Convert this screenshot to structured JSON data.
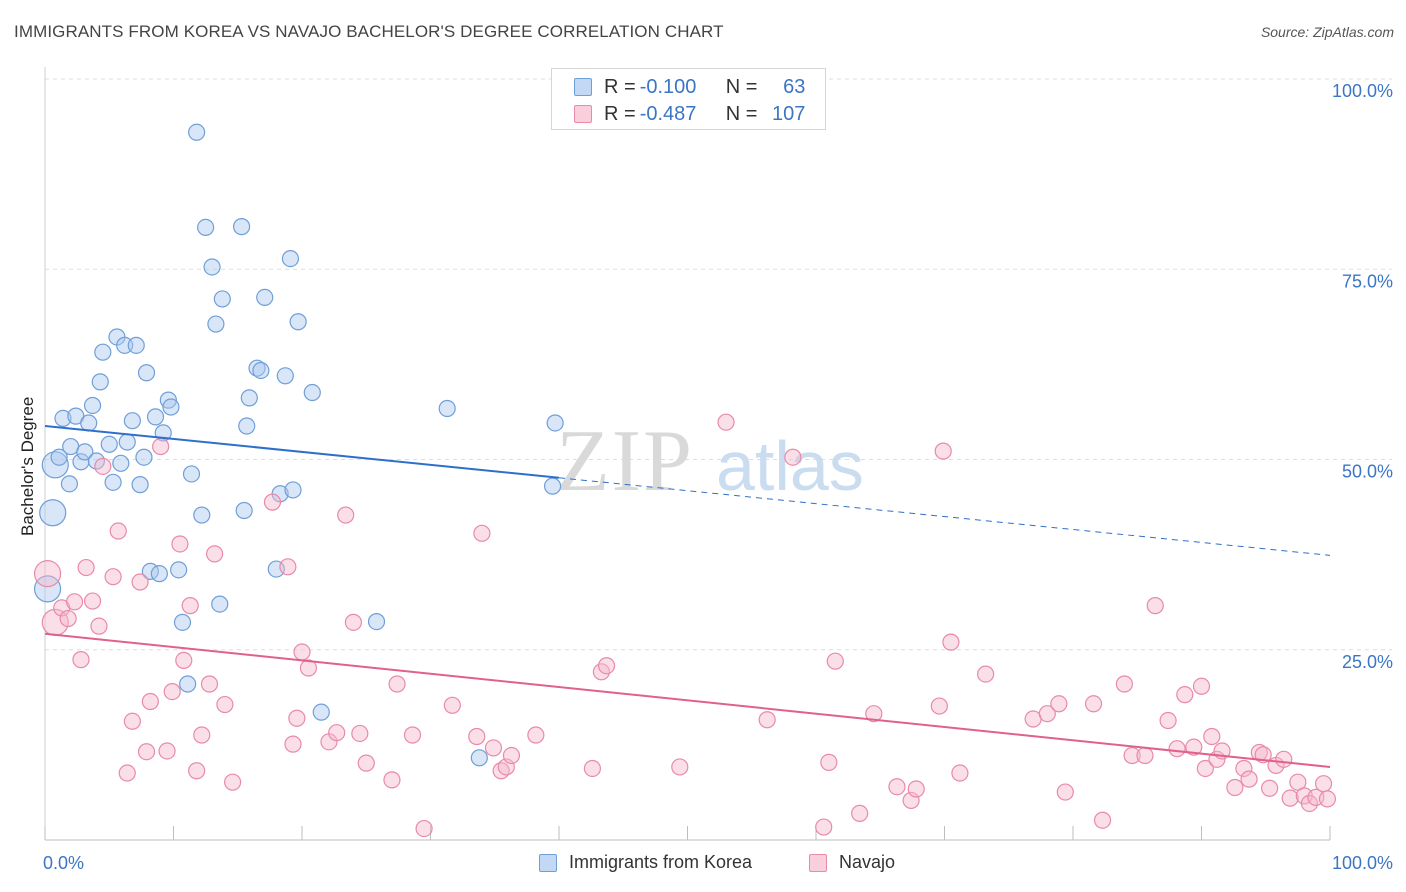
{
  "header": {
    "title": "IMMIGRANTS FROM KOREA VS NAVAJO BACHELOR'S DEGREE CORRELATION CHART",
    "source": "Source: ZipAtlas.com"
  },
  "legend_top": {
    "rows": [
      {
        "r_label": "R = ",
        "r_value": "-0.100",
        "n_label": "N = ",
        "n_value": "63"
      },
      {
        "r_label": "R = ",
        "r_value": "-0.487",
        "n_label": "N = ",
        "n_value": "107"
      }
    ]
  },
  "legend_bottom": {
    "items": [
      "Immigrants from Korea",
      "Navajo"
    ]
  },
  "watermark": {
    "zip": "ZIP",
    "atlas": "atlas"
  },
  "colors": {
    "korea_fill": "#a9c8f0",
    "korea_stroke": "#6f9fd8",
    "korea_line": "#2f6fcc",
    "navajo_fill": "#f5b8cb",
    "navajo_stroke": "#e98aa8",
    "navajo_line": "#e0608e",
    "tick_label": "#3a76c4",
    "grid": "#dddddd"
  },
  "chart_data": {
    "type": "scatter",
    "title": "IMMIGRANTS FROM KOREA VS NAVAJO BACHELOR'S DEGREE CORRELATION CHART",
    "xlabel": "",
    "ylabel": "Bachelor's Degree",
    "xlim": [
      0,
      100
    ],
    "ylim": [
      0,
      100
    ],
    "x_tick_labels": [
      "0.0%",
      "100.0%"
    ],
    "y_tick_labels": [
      "25.0%",
      "50.0%",
      "75.0%",
      "100.0%"
    ],
    "y_ticks": [
      25,
      50,
      75,
      100
    ],
    "grid": true,
    "legend_placement": "top-center",
    "series": [
      {
        "name": "Immigrants from Korea",
        "r": -0.1,
        "n": 63,
        "trend": {
          "x0": 0,
          "y0": 54.4,
          "x1": 40,
          "y1": 47.6,
          "dashed_to_x": 100,
          "dashed_to_y": 37.4
        },
        "points": [
          [
            0.2,
            33.0
          ],
          [
            0.6,
            43.0
          ],
          [
            0.8,
            49.3
          ],
          [
            1.1,
            50.3
          ],
          [
            1.4,
            55.4
          ],
          [
            1.9,
            46.8
          ],
          [
            2.0,
            51.7
          ],
          [
            2.4,
            55.7
          ],
          [
            2.8,
            49.7
          ],
          [
            3.1,
            51.0
          ],
          [
            3.4,
            54.8
          ],
          [
            3.7,
            57.1
          ],
          [
            4.0,
            49.8
          ],
          [
            4.3,
            60.2
          ],
          [
            4.5,
            64.1
          ],
          [
            5.0,
            52.0
          ],
          [
            5.3,
            47.0
          ],
          [
            5.6,
            66.1
          ],
          [
            5.9,
            49.5
          ],
          [
            6.2,
            65.0
          ],
          [
            6.4,
            52.3
          ],
          [
            6.8,
            55.1
          ],
          [
            7.1,
            65.0
          ],
          [
            7.4,
            46.7
          ],
          [
            7.7,
            50.3
          ],
          [
            7.9,
            61.4
          ],
          [
            8.2,
            35.3
          ],
          [
            8.6,
            55.6
          ],
          [
            8.9,
            35.0
          ],
          [
            9.2,
            53.5
          ],
          [
            9.6,
            57.8
          ],
          [
            9.8,
            56.9
          ],
          [
            10.4,
            35.5
          ],
          [
            10.7,
            28.6
          ],
          [
            11.1,
            20.5
          ],
          [
            11.4,
            48.1
          ],
          [
            11.8,
            93.0
          ],
          [
            12.2,
            42.7
          ],
          [
            12.5,
            80.5
          ],
          [
            13.0,
            75.3
          ],
          [
            13.3,
            67.8
          ],
          [
            13.8,
            71.1
          ],
          [
            13.6,
            31.0
          ],
          [
            15.3,
            80.6
          ],
          [
            15.5,
            43.3
          ],
          [
            15.7,
            54.4
          ],
          [
            15.9,
            58.1
          ],
          [
            16.5,
            62.0
          ],
          [
            16.8,
            61.7
          ],
          [
            17.1,
            71.3
          ],
          [
            18.0,
            35.6
          ],
          [
            18.3,
            45.5
          ],
          [
            19.1,
            76.4
          ],
          [
            19.3,
            46.0
          ],
          [
            19.7,
            68.1
          ],
          [
            18.7,
            61.0
          ],
          [
            20.8,
            58.8
          ],
          [
            21.5,
            16.8
          ],
          [
            25.8,
            28.7
          ],
          [
            31.3,
            56.7
          ],
          [
            33.8,
            10.8
          ],
          [
            39.5,
            46.5
          ],
          [
            39.7,
            54.8
          ]
        ]
      },
      {
        "name": "Navajo",
        "r": -0.487,
        "n": 107,
        "trend": {
          "x0": 0,
          "y0": 27.1,
          "x1": 100,
          "y1": 9.6
        },
        "points": [
          [
            0.2,
            35.0
          ],
          [
            0.8,
            28.6
          ],
          [
            1.3,
            30.5
          ],
          [
            1.8,
            29.1
          ],
          [
            2.3,
            31.3
          ],
          [
            2.8,
            23.7
          ],
          [
            3.2,
            35.8
          ],
          [
            3.7,
            31.4
          ],
          [
            4.2,
            28.1
          ],
          [
            4.5,
            49.1
          ],
          [
            5.3,
            34.6
          ],
          [
            5.7,
            40.6
          ],
          [
            6.4,
            8.8
          ],
          [
            6.8,
            15.6
          ],
          [
            7.4,
            33.9
          ],
          [
            7.9,
            11.6
          ],
          [
            8.2,
            18.2
          ],
          [
            9.0,
            51.7
          ],
          [
            9.5,
            11.7
          ],
          [
            9.9,
            19.5
          ],
          [
            10.5,
            38.9
          ],
          [
            10.8,
            23.6
          ],
          [
            11.3,
            30.8
          ],
          [
            11.8,
            9.1
          ],
          [
            12.2,
            13.8
          ],
          [
            12.8,
            20.5
          ],
          [
            13.2,
            37.6
          ],
          [
            14.0,
            17.8
          ],
          [
            14.6,
            7.6
          ],
          [
            17.7,
            44.4
          ],
          [
            18.9,
            35.9
          ],
          [
            19.3,
            12.6
          ],
          [
            19.6,
            16.0
          ],
          [
            20.0,
            24.7
          ],
          [
            20.5,
            22.6
          ],
          [
            22.1,
            12.9
          ],
          [
            22.7,
            14.1
          ],
          [
            23.4,
            42.7
          ],
          [
            24.0,
            28.6
          ],
          [
            24.5,
            14.0
          ],
          [
            25.0,
            10.1
          ],
          [
            27.0,
            7.9
          ],
          [
            27.4,
            20.5
          ],
          [
            28.6,
            13.8
          ],
          [
            29.5,
            1.5
          ],
          [
            31.7,
            17.7
          ],
          [
            33.6,
            13.6
          ],
          [
            34.0,
            40.3
          ],
          [
            34.9,
            12.1
          ],
          [
            35.5,
            9.1
          ],
          [
            35.9,
            9.6
          ],
          [
            36.3,
            11.1
          ],
          [
            38.2,
            13.8
          ],
          [
            42.6,
            9.4
          ],
          [
            43.3,
            22.1
          ],
          [
            43.7,
            22.9
          ],
          [
            49.4,
            9.6
          ],
          [
            53.0,
            54.9
          ],
          [
            56.2,
            15.8
          ],
          [
            58.2,
            50.3
          ],
          [
            60.6,
            1.7
          ],
          [
            61.0,
            10.2
          ],
          [
            61.5,
            23.5
          ],
          [
            63.4,
            3.5
          ],
          [
            64.5,
            16.6
          ],
          [
            66.3,
            7.0
          ],
          [
            67.4,
            5.2
          ],
          [
            67.8,
            6.7
          ],
          [
            69.6,
            17.6
          ],
          [
            69.9,
            51.1
          ],
          [
            70.5,
            26.0
          ],
          [
            71.2,
            8.8
          ],
          [
            73.2,
            21.8
          ],
          [
            76.9,
            15.9
          ],
          [
            78.0,
            16.6
          ],
          [
            78.9,
            17.9
          ],
          [
            79.4,
            6.3
          ],
          [
            81.6,
            17.9
          ],
          [
            82.3,
            2.6
          ],
          [
            84.0,
            20.5
          ],
          [
            84.6,
            11.1
          ],
          [
            85.6,
            11.1
          ],
          [
            86.4,
            30.8
          ],
          [
            87.4,
            15.7
          ],
          [
            88.1,
            12.0
          ],
          [
            88.7,
            19.1
          ],
          [
            89.4,
            12.2
          ],
          [
            90.0,
            20.2
          ],
          [
            90.3,
            9.4
          ],
          [
            90.8,
            13.6
          ],
          [
            91.2,
            10.6
          ],
          [
            91.6,
            11.7
          ],
          [
            92.6,
            6.9
          ],
          [
            93.3,
            9.4
          ],
          [
            93.7,
            8.0
          ],
          [
            94.5,
            11.5
          ],
          [
            94.8,
            11.2
          ],
          [
            95.3,
            6.8
          ],
          [
            95.8,
            9.8
          ],
          [
            96.4,
            10.6
          ],
          [
            96.9,
            5.5
          ],
          [
            97.5,
            7.6
          ],
          [
            98.0,
            5.8
          ],
          [
            98.4,
            4.8
          ],
          [
            98.9,
            5.6
          ],
          [
            99.5,
            7.4
          ],
          [
            99.8,
            5.4
          ]
        ]
      }
    ]
  }
}
